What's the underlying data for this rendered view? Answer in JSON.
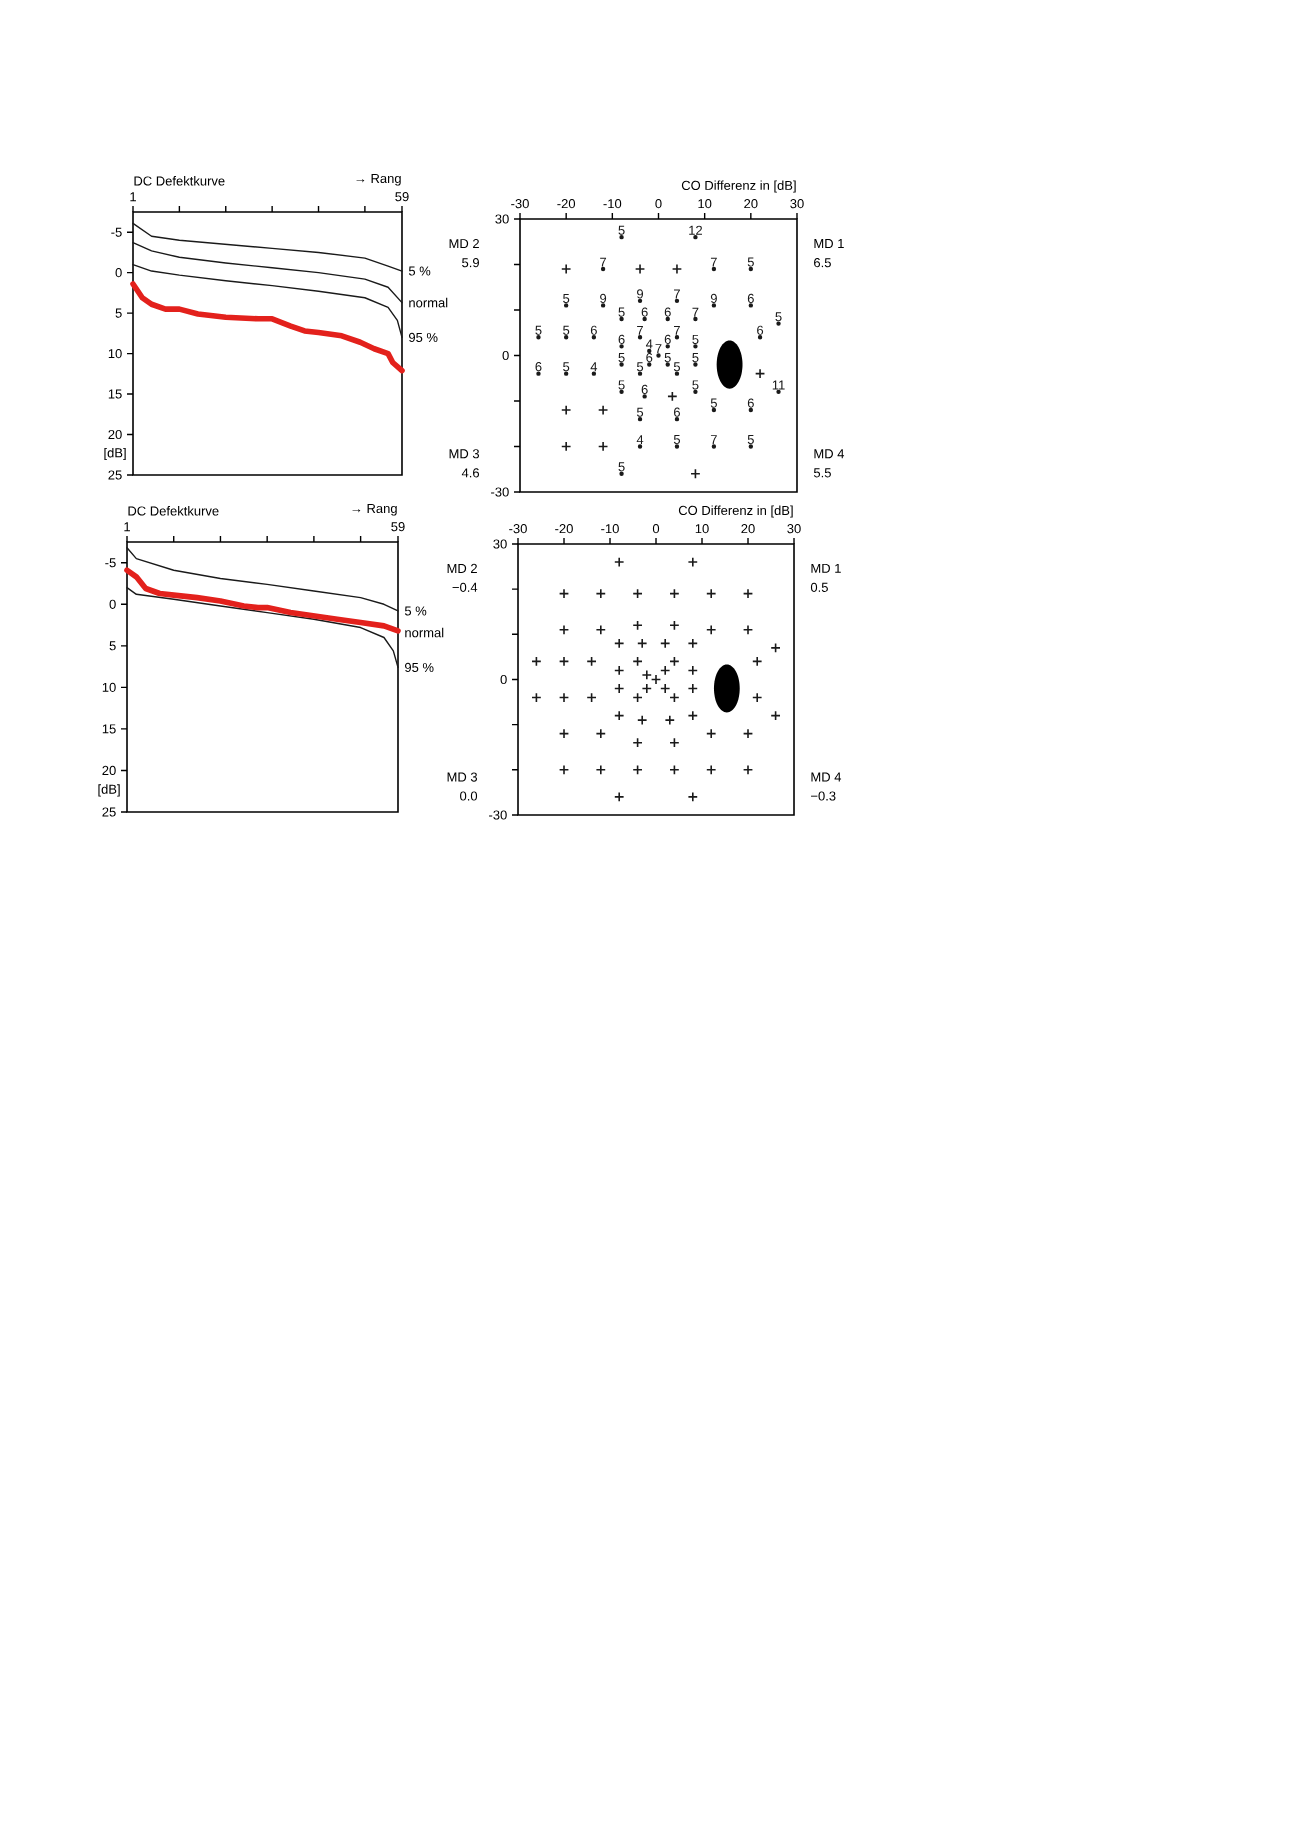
{
  "chart_data": [
    {
      "type": "line",
      "title": "DC Defektkurve",
      "xlabel": "→ Rang",
      "ylabel": "[dB]",
      "xlim": [
        1,
        59
      ],
      "xticks": [
        1,
        {
          "value": 11,
          "label": null
        },
        {
          "value": 21,
          "label": null
        },
        {
          "value": 31,
          "label": null
        },
        {
          "value": 41,
          "label": null
        },
        {
          "value": 51,
          "label": null
        },
        59
      ],
      "ylim": [
        25,
        -7.5
      ],
      "yticks": [
        -5,
        0,
        5,
        10,
        15,
        20,
        25
      ],
      "marker": "none",
      "line_style": "solid",
      "series": [
        {
          "name": "5 %",
          "color": "#1a1a1a",
          "x": [
            1,
            5,
            11,
            21,
            31,
            41,
            51,
            56,
            59
          ],
          "values": [
            -6.1,
            -4.5,
            -4.0,
            -3.5,
            -3.0,
            -2.5,
            -1.8,
            -0.8,
            -0.2
          ]
        },
        {
          "name": "normal",
          "color": "#1a1a1a",
          "x": [
            1,
            5,
            11,
            21,
            31,
            41,
            51,
            56,
            59
          ],
          "values": [
            -3.7,
            -2.7,
            -1.9,
            -1.2,
            -0.6,
            0.0,
            0.8,
            1.8,
            3.7
          ]
        },
        {
          "name": "95 %",
          "color": "#1a1a1a",
          "x": [
            1,
            5,
            11,
            21,
            31,
            41,
            51,
            56,
            58,
            59
          ],
          "values": [
            -1.0,
            -0.2,
            0.3,
            1.0,
            1.6,
            2.3,
            3.1,
            4.3,
            5.9,
            8.0
          ]
        },
        {
          "color": "#e3211c",
          "x": [
            1,
            3,
            5,
            8,
            11,
            15,
            21,
            28,
            31,
            35,
            38,
            41,
            46,
            50,
            53,
            56,
            57,
            59
          ],
          "values": [
            1.4,
            3.1,
            3.9,
            4.5,
            4.5,
            5.1,
            5.5,
            5.7,
            5.7,
            6.6,
            7.2,
            7.4,
            7.8,
            8.6,
            9.4,
            10.0,
            11.1,
            12.1
          ]
        }
      ]
    },
    {
      "type": "line",
      "title": "DC Defektkurve",
      "xlabel": "→ Rang",
      "ylabel": "[dB]",
      "xlim": [
        1,
        59
      ],
      "xticks": [
        1,
        {
          "value": 11,
          "label": null
        },
        {
          "value": 21,
          "label": null
        },
        {
          "value": 31,
          "label": null
        },
        {
          "value": 41,
          "label": null
        },
        {
          "value": 51,
          "label": null
        },
        59
      ],
      "ylim": [
        25,
        -7.5
      ],
      "yticks": [
        -5,
        0,
        5,
        10,
        15,
        20,
        25
      ],
      "marker": "none",
      "line_style": "solid",
      "annotations": [
        {
          "text": "normal",
          "x": 59,
          "y": 3.4
        }
      ],
      "series": [
        {
          "name": "5 %",
          "color": "#1a1a1a",
          "x": [
            1,
            3,
            11,
            21,
            31,
            41,
            51,
            56,
            59
          ],
          "values": [
            -6.8,
            -5.5,
            -4.1,
            -3.1,
            -2.4,
            -1.6,
            -0.8,
            0.0,
            0.8
          ]
        },
        {
          "name": "95 %",
          "color": "#1a1a1a",
          "x": [
            1,
            3,
            11,
            21,
            31,
            41,
            51,
            56,
            58,
            59
          ],
          "values": [
            -2.0,
            -1.2,
            -0.6,
            0.2,
            1.0,
            1.8,
            2.8,
            4.0,
            5.6,
            7.6
          ]
        },
        {
          "color": "#e3211c",
          "x": [
            1,
            3,
            5,
            8,
            11,
            16,
            21,
            26,
            29,
            31,
            36,
            41,
            46,
            51,
            56,
            59
          ],
          "values": [
            -4.1,
            -3.3,
            -1.9,
            -1.3,
            -1.1,
            -0.8,
            -0.4,
            0.2,
            0.4,
            0.4,
            1.0,
            1.4,
            1.8,
            2.2,
            2.6,
            3.2
          ]
        }
      ]
    },
    {
      "type": "scatter",
      "xlabel": "CO Differenz in [dB]",
      "xlim": [
        -30,
        30
      ],
      "xticks": [
        -30,
        -20,
        -10,
        0,
        10,
        20,
        30
      ],
      "ylim": [
        -30,
        30
      ],
      "yticks": [
        30,
        {
          "value": 20,
          "label": null
        },
        {
          "value": 10,
          "label": null
        },
        0,
        {
          "value": -10,
          "label": null
        },
        {
          "value": -20,
          "label": null
        },
        -30
      ],
      "annotations": [
        "MD 2",
        "5.9",
        "MD 1",
        "6.5",
        "MD 3",
        "4.6",
        "MD 4",
        "5.5",
        {
          "text": "5",
          "x": -8,
          "y": 26
        },
        {
          "text": "12",
          "x": 8,
          "y": 26
        },
        {
          "text": "7",
          "x": -12,
          "y": 19
        },
        {
          "text": "7",
          "x": 12,
          "y": 19
        },
        {
          "text": "5",
          "x": 20,
          "y": 19
        },
        {
          "text": "5",
          "x": -20,
          "y": 11
        },
        {
          "text": "9",
          "x": -12,
          "y": 11
        },
        {
          "text": "9",
          "x": -4,
          "y": 12
        },
        {
          "text": "7",
          "x": 4,
          "y": 12
        },
        {
          "text": "9",
          "x": 12,
          "y": 11
        },
        {
          "text": "6",
          "x": 20,
          "y": 11
        },
        {
          "text": "5",
          "x": -8,
          "y": 8
        },
        {
          "text": "6",
          "x": -3,
          "y": 8
        },
        {
          "text": "6",
          "x": 2,
          "y": 8
        },
        {
          "text": "7",
          "x": 8,
          "y": 8
        },
        {
          "text": "5",
          "x": 26,
          "y": 7
        },
        {
          "text": "5",
          "x": -26,
          "y": 4
        },
        {
          "text": "5",
          "x": -20,
          "y": 4
        },
        {
          "text": "6",
          "x": -14,
          "y": 4
        },
        {
          "text": "7",
          "x": -4,
          "y": 4
        },
        {
          "text": "7",
          "x": 4,
          "y": 4
        },
        {
          "text": "6",
          "x": 22,
          "y": 4
        },
        {
          "text": "6",
          "x": -8,
          "y": 2
        },
        {
          "text": "4",
          "x": -2,
          "y": 1
        },
        {
          "text": "6",
          "x": 2,
          "y": 2
        },
        {
          "text": "5",
          "x": 8,
          "y": 2
        },
        {
          "text": "7",
          "x": 0,
          "y": 0
        },
        {
          "text": "5",
          "x": -8,
          "y": -2
        },
        {
          "text": "6",
          "x": -2,
          "y": -2
        },
        {
          "text": "5",
          "x": 2,
          "y": -2
        },
        {
          "text": "5",
          "x": 8,
          "y": -2
        },
        {
          "text": "6",
          "x": -26,
          "y": -4
        },
        {
          "text": "5",
          "x": -20,
          "y": -4
        },
        {
          "text": "4",
          "x": -14,
          "y": -4
        },
        {
          "text": "5",
          "x": -4,
          "y": -4
        },
        {
          "text": "5",
          "x": 4,
          "y": -4
        },
        {
          "text": "5",
          "x": -8,
          "y": -8
        },
        {
          "text": "6",
          "x": -3,
          "y": -9
        },
        {
          "text": "5",
          "x": 8,
          "y": -8
        },
        {
          "text": "11",
          "x": 26,
          "y": -8
        },
        {
          "text": "5",
          "x": -4,
          "y": -14
        },
        {
          "text": "6",
          "x": 4,
          "y": -14
        },
        {
          "text": "5",
          "x": 12,
          "y": -12
        },
        {
          "text": "6",
          "x": 20,
          "y": -12
        },
        {
          "text": "4",
          "x": -4,
          "y": -20
        },
        {
          "text": "5",
          "x": 4,
          "y": -20
        },
        {
          "text": "7",
          "x": 12,
          "y": -20
        },
        {
          "text": "5",
          "x": 20,
          "y": -20
        },
        {
          "text": "5",
          "x": -8,
          "y": -26
        }
      ],
      "series": [
        {
          "color": "#1a1a1a",
          "marker": "circle",
          "x": [
            -8,
            8,
            -12,
            12,
            20,
            -20,
            -12,
            -4,
            4,
            12,
            20,
            -8,
            -3,
            2,
            8,
            26,
            -26,
            -20,
            -14,
            -4,
            4,
            22,
            -8,
            -2,
            2,
            8,
            0,
            -8,
            -2,
            2,
            8,
            -26,
            -20,
            -14,
            -4,
            4,
            -8,
            -3,
            8,
            26,
            -4,
            4,
            12,
            20,
            -4,
            4,
            12,
            20,
            -8
          ],
          "values": [
            26,
            26,
            19,
            19,
            19,
            11,
            11,
            12,
            12,
            11,
            11,
            8,
            8,
            8,
            8,
            7,
            4,
            4,
            4,
            4,
            4,
            4,
            2,
            1,
            2,
            2,
            0,
            -2,
            -2,
            -2,
            -2,
            -4,
            -4,
            -4,
            -4,
            -4,
            -8,
            -9,
            -8,
            -8,
            -14,
            -14,
            -12,
            -12,
            -20,
            -20,
            -20,
            -20,
            -26
          ]
        },
        {
          "color": "#1a1a1a",
          "marker": "cross",
          "x": [
            -20,
            -4,
            4,
            22,
            3,
            -20,
            -12,
            -20,
            -12,
            8
          ],
          "values": [
            19,
            19,
            19,
            -4,
            -9,
            -12,
            -12,
            -20,
            -20,
            -26
          ]
        }
      ]
    },
    {
      "type": "scatter",
      "xlabel": "CO Differenz in [dB]",
      "xlim": [
        -30,
        30
      ],
      "xticks": [
        -30,
        -20,
        -10,
        0,
        10,
        20,
        30
      ],
      "ylim": [
        -30,
        30
      ],
      "yticks": [
        30,
        {
          "value": 20,
          "label": null
        },
        {
          "value": 10,
          "label": null
        },
        0,
        {
          "value": -10,
          "label": null
        },
        {
          "value": -20,
          "label": null
        },
        -30
      ],
      "annotations": [
        "MD 2",
        "−0.4",
        "MD 1",
        "0.5",
        "MD 3",
        "0.0",
        "MD 4",
        "−0.3"
      ],
      "series": [
        {
          "color": "#1a1a1a",
          "marker": "cross",
          "x": [
            -8,
            8,
            -20,
            -12,
            -4,
            4,
            12,
            20,
            -20,
            -12,
            -4,
            4,
            12,
            20,
            -8,
            -3,
            2,
            8,
            26,
            -26,
            -20,
            -14,
            -4,
            4,
            22,
            -8,
            -2,
            2,
            8,
            0,
            -8,
            -2,
            2,
            8,
            -26,
            -20,
            -14,
            -4,
            4,
            22,
            -8,
            -3,
            3,
            8,
            26,
            -20,
            -12,
            -4,
            4,
            12,
            20,
            -20,
            -12,
            -4,
            4,
            12,
            20,
            -8,
            8
          ],
          "values": [
            26,
            26,
            19,
            19,
            19,
            19,
            19,
            19,
            11,
            11,
            12,
            12,
            11,
            11,
            8,
            8,
            8,
            8,
            7,
            4,
            4,
            4,
            4,
            4,
            4,
            2,
            1,
            2,
            2,
            0,
            -2,
            -2,
            -2,
            -2,
            -4,
            -4,
            -4,
            -4,
            -4,
            -4,
            -8,
            -9,
            -9,
            -8,
            -8,
            -12,
            -12,
            -14,
            -14,
            -12,
            -12,
            -20,
            -20,
            -20,
            -20,
            -20,
            -20,
            -26,
            -26
          ]
        }
      ]
    }
  ]
}
